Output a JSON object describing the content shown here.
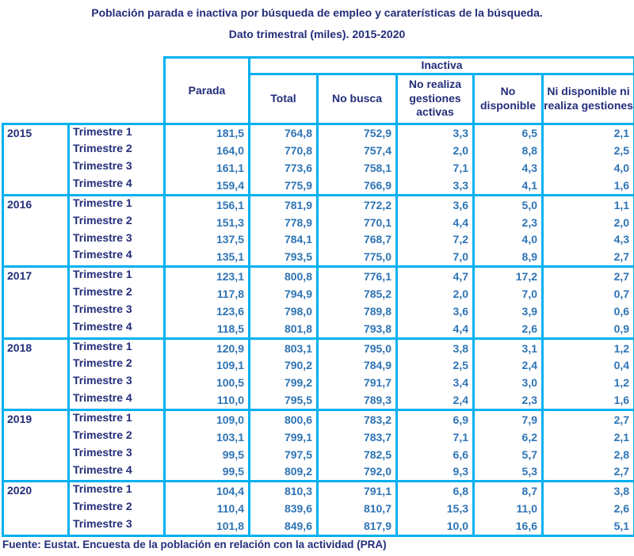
{
  "title": {
    "line1": "Población parada e inactiva por búsqueda de empleo y caraterísticas de la búsqueda.",
    "line2": "Dato trimestral (miles). 2015-2020"
  },
  "footer": {
    "source": "Fuente: Eustat. Encuesta de la población en relación con la actividad (PRA)"
  },
  "colors": {
    "border_accent": "#00B0F0",
    "label_text": "#232E7A",
    "value_text": "#2E74B5",
    "background": "#ffffff"
  },
  "chart_data": {
    "type": "table",
    "title": "Población parada e inactiva por búsqueda de empleo y caraterísticas de la búsqueda.",
    "subtitle": "Dato trimestral (miles). 2015-2020",
    "group_header": "Inactiva",
    "group_span_columns": [
      "Total",
      "No busca",
      "No realiza gestiones activas",
      "No disponible",
      "Ni disponible ni realiza gestiones"
    ],
    "columns": [
      "Parada",
      "Total",
      "No busca",
      "No realiza gestiones activas",
      "No disponible",
      "Ni disponible ni realiza gestiones"
    ],
    "units": "miles",
    "rows": [
      {
        "year": "2015",
        "quarter": "Trimestre 1",
        "values": [
          "181,5",
          "764,8",
          "752,9",
          "3,3",
          "6,5",
          "2,1"
        ]
      },
      {
        "year": "2015",
        "quarter": "Trimestre 2",
        "values": [
          "164,0",
          "770,8",
          "757,4",
          "2,0",
          "8,8",
          "2,5"
        ]
      },
      {
        "year": "2015",
        "quarter": "Trimestre 3",
        "values": [
          "161,1",
          "773,6",
          "758,1",
          "7,1",
          "4,3",
          "4,0"
        ]
      },
      {
        "year": "2015",
        "quarter": "Trimestre 4",
        "values": [
          "159,4",
          "775,9",
          "766,9",
          "3,3",
          "4,1",
          "1,6"
        ]
      },
      {
        "year": "2016",
        "quarter": "Trimestre 1",
        "values": [
          "156,1",
          "781,9",
          "772,2",
          "3,6",
          "5,0",
          "1,1"
        ]
      },
      {
        "year": "2016",
        "quarter": "Trimestre 2",
        "values": [
          "151,3",
          "778,9",
          "770,1",
          "4,4",
          "2,3",
          "2,0"
        ]
      },
      {
        "year": "2016",
        "quarter": "Trimestre 3",
        "values": [
          "137,5",
          "784,1",
          "768,7",
          "7,2",
          "4,0",
          "4,3"
        ]
      },
      {
        "year": "2016",
        "quarter": "Trimestre 4",
        "values": [
          "135,1",
          "793,5",
          "775,0",
          "7,0",
          "8,9",
          "2,7"
        ]
      },
      {
        "year": "2017",
        "quarter": "Trimestre 1",
        "values": [
          "123,1",
          "800,8",
          "776,1",
          "4,7",
          "17,2",
          "2,7"
        ]
      },
      {
        "year": "2017",
        "quarter": "Trimestre 2",
        "values": [
          "117,8",
          "794,9",
          "785,2",
          "2,0",
          "7,0",
          "0,7"
        ]
      },
      {
        "year": "2017",
        "quarter": "Trimestre 3",
        "values": [
          "123,6",
          "798,0",
          "789,8",
          "3,6",
          "3,9",
          "0,6"
        ]
      },
      {
        "year": "2017",
        "quarter": "Trimestre 4",
        "values": [
          "118,5",
          "801,8",
          "793,8",
          "4,4",
          "2,6",
          "0,9"
        ]
      },
      {
        "year": "2018",
        "quarter": "Trimestre 1",
        "values": [
          "120,9",
          "803,1",
          "795,0",
          "3,8",
          "3,1",
          "1,2"
        ]
      },
      {
        "year": "2018",
        "quarter": "Trimestre 2",
        "values": [
          "109,1",
          "790,2",
          "784,9",
          "2,5",
          "2,4",
          "0,4"
        ]
      },
      {
        "year": "2018",
        "quarter": "Trimestre 3",
        "values": [
          "100,5",
          "799,2",
          "791,7",
          "3,4",
          "3,0",
          "1,2"
        ]
      },
      {
        "year": "2018",
        "quarter": "Trimestre 4",
        "values": [
          "110,0",
          "795,5",
          "789,3",
          "2,4",
          "2,3",
          "1,6"
        ]
      },
      {
        "year": "2019",
        "quarter": "Trimestre 1",
        "values": [
          "109,0",
          "800,6",
          "783,2",
          "6,9",
          "7,9",
          "2,7"
        ]
      },
      {
        "year": "2019",
        "quarter": "Trimestre 2",
        "values": [
          "103,1",
          "799,1",
          "783,7",
          "7,1",
          "6,2",
          "2,1"
        ]
      },
      {
        "year": "2019",
        "quarter": "Trimestre 3",
        "values": [
          "99,5",
          "797,5",
          "782,5",
          "6,6",
          "5,7",
          "2,8"
        ]
      },
      {
        "year": "2019",
        "quarter": "Trimestre 4",
        "values": [
          "99,5",
          "809,2",
          "792,0",
          "9,3",
          "5,3",
          "2,7"
        ]
      },
      {
        "year": "2020",
        "quarter": "Trimestre 1",
        "values": [
          "104,4",
          "810,3",
          "791,1",
          "6,8",
          "8,7",
          "3,8"
        ]
      },
      {
        "year": "2020",
        "quarter": "Trimestre 2",
        "values": [
          "110,4",
          "839,6",
          "810,7",
          "15,3",
          "11,0",
          "2,6"
        ]
      },
      {
        "year": "2020",
        "quarter": "Trimestre 3",
        "values": [
          "101,8",
          "849,6",
          "817,9",
          "10,0",
          "16,6",
          "5,1"
        ]
      }
    ],
    "source": "Fuente: Eustat. Encuesta de la población en relación con la actividad (PRA)",
    "layout": {
      "grid": "cyan cell borders",
      "legend": "none",
      "decimal_separator": ","
    }
  }
}
